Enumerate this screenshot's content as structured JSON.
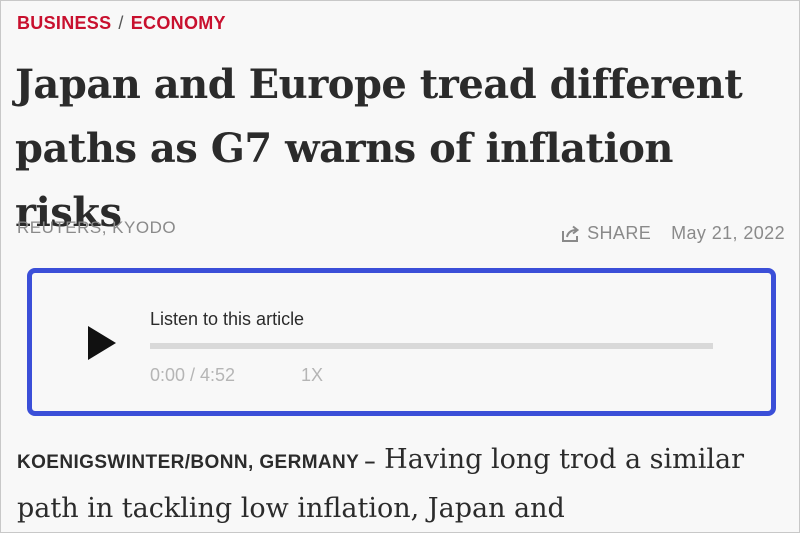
{
  "breadcrumb": {
    "section": "BUSINESS",
    "separator": "/",
    "subsection": "ECONOMY"
  },
  "article": {
    "headline": "Japan and Europe tread different paths as G7 warns of inflation risks",
    "byline": "REUTERS, KYODO",
    "share_label": "SHARE",
    "date": "May 21, 2022",
    "dateline": "KOENIGSWINTER/BONN, GERMANY –",
    "body_start": "Having long trod a similar path in tackling low inflation, Japan and"
  },
  "audio_player": {
    "label": "Listen to this article",
    "time": "0:00 / 4:52",
    "speed": "1X",
    "progress": 0,
    "accent_color": "#3b4fd8"
  },
  "colors": {
    "breadcrumb": "#c8102e",
    "headline": "#2b2b2b",
    "meta": "#8a8a8a",
    "player_border": "#3b4fd8"
  },
  "icons": {
    "play": "play-icon",
    "share": "share-icon"
  }
}
